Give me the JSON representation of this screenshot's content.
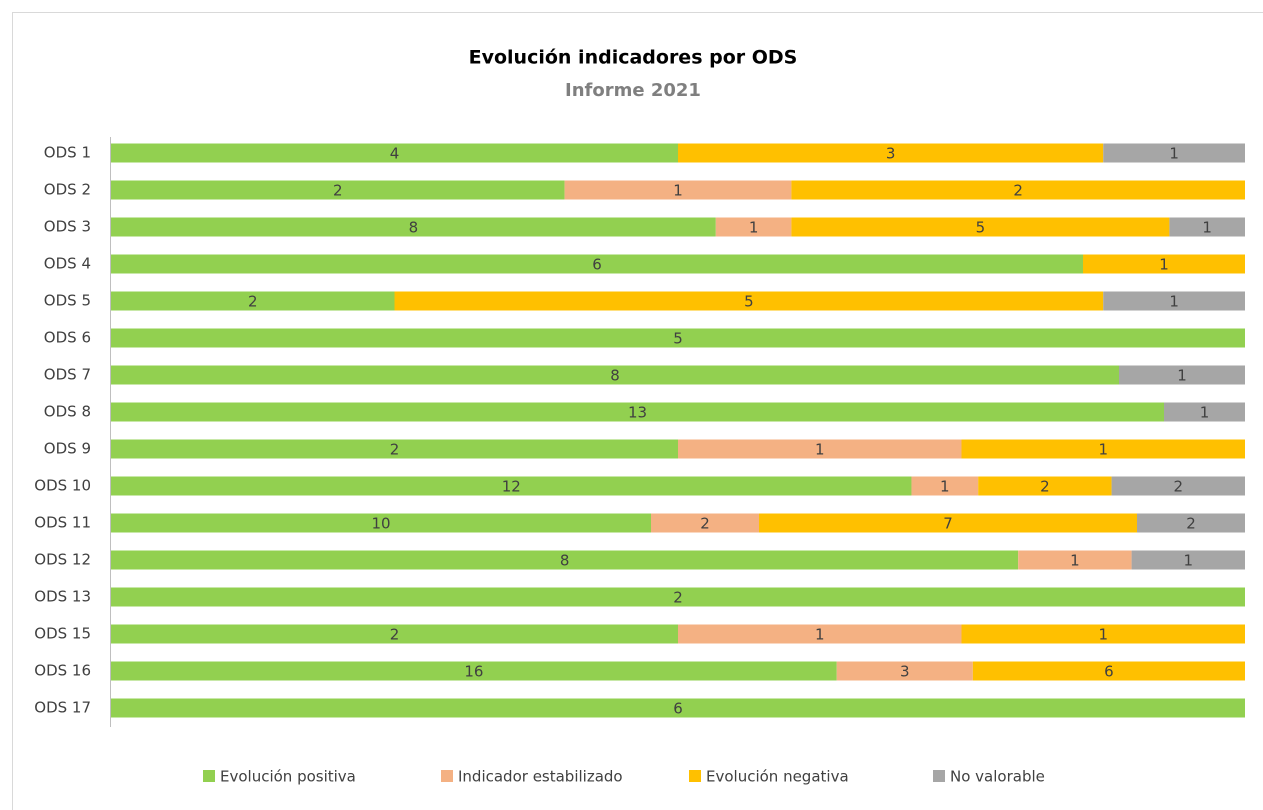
{
  "chart_data": {
    "type": "bar100h",
    "title": "Evolución indicadores por ODS",
    "subtitle": "Informe 2021",
    "categories": [
      "ODS 1",
      "ODS 2",
      "ODS 3",
      "ODS 4",
      "ODS 5",
      "ODS 6",
      "ODS 7",
      "ODS 8",
      "ODS 9",
      "ODS 10",
      "ODS 11",
      "ODS 12",
      "ODS 13",
      "ODS 15",
      "ODS 16",
      "ODS 17"
    ],
    "series": [
      {
        "name": "Evolución positiva",
        "color": "#92d050",
        "values": [
          4,
          2,
          8,
          6,
          2,
          5,
          8,
          13,
          2,
          12,
          10,
          8,
          2,
          2,
          16,
          6
        ]
      },
      {
        "name": "Indicador estabilizado",
        "color": "#f4b183",
        "values": [
          null,
          1,
          1,
          null,
          null,
          null,
          null,
          null,
          1,
          1,
          2,
          1,
          null,
          1,
          3,
          null
        ]
      },
      {
        "name": "Evolución negativa",
        "color": "#ffc000",
        "values": [
          3,
          2,
          5,
          1,
          5,
          null,
          null,
          null,
          1,
          2,
          7,
          null,
          null,
          1,
          6,
          null
        ]
      },
      {
        "name": "No valorable",
        "color": "#a6a6a6",
        "values": [
          1,
          null,
          1,
          null,
          1,
          null,
          1,
          1,
          null,
          2,
          2,
          1,
          null,
          null,
          null,
          null
        ]
      }
    ],
    "legend": "bottom"
  }
}
